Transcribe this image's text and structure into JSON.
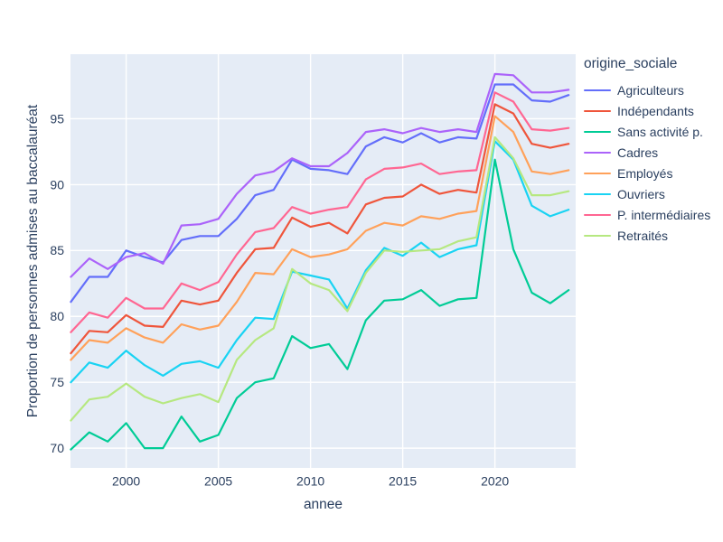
{
  "chart_data": {
    "type": "line",
    "title": "",
    "xlabel": "annee",
    "ylabel": "Proportion de personnes admises au baccalauréat",
    "legend_title": "origine_sociale",
    "legend_position": "right",
    "grid": true,
    "plot_bg": "#E5ECF6",
    "grid_color": "#ffffff",
    "text_color": "#2a3f5f",
    "x_ticks": [
      2000,
      2005,
      2010,
      2015,
      2020
    ],
    "y_ticks": [
      70,
      75,
      80,
      85,
      90,
      95
    ],
    "x_range": [
      1996.98,
      2024.38
    ],
    "y_range": [
      68.5,
      99.9
    ],
    "x": [
      1997,
      1998,
      1999,
      2000,
      2001,
      2002,
      2003,
      2004,
      2005,
      2006,
      2007,
      2008,
      2009,
      2010,
      2011,
      2012,
      2013,
      2014,
      2015,
      2016,
      2017,
      2018,
      2019,
      2020,
      2021,
      2022,
      2023,
      2024
    ],
    "series": [
      {
        "name": "Agriculteurs",
        "color": "#636EFA",
        "values": [
          81.1,
          83.0,
          83.0,
          85.0,
          84.5,
          84.1,
          85.8,
          86.1,
          86.1,
          87.4,
          89.2,
          89.6,
          91.9,
          91.2,
          91.1,
          90.8,
          92.9,
          93.6,
          93.2,
          93.9,
          93.2,
          93.6,
          93.5,
          97.6,
          97.6,
          96.4,
          96.3,
          96.8
        ]
      },
      {
        "name": "Indépendants",
        "color": "#EF553B",
        "values": [
          77.2,
          78.9,
          78.8,
          80.1,
          79.3,
          79.2,
          81.2,
          80.9,
          81.2,
          83.3,
          85.1,
          85.2,
          87.5,
          86.8,
          87.1,
          86.3,
          88.5,
          89.0,
          89.1,
          90.0,
          89.3,
          89.6,
          89.4,
          96.1,
          95.4,
          93.1,
          92.8,
          93.1
        ]
      },
      {
        "name": "Sans activité p.",
        "color": "#00CC96",
        "values": [
          69.9,
          71.2,
          70.5,
          71.9,
          70.0,
          70.0,
          72.4,
          70.5,
          71.0,
          73.8,
          75.0,
          75.3,
          78.5,
          77.6,
          77.9,
          76.0,
          79.7,
          81.2,
          81.3,
          82.0,
          80.8,
          81.3,
          81.4,
          91.9,
          85.1,
          81.8,
          81.0,
          82.0
        ]
      },
      {
        "name": "Cadres",
        "color": "#AB63FA",
        "values": [
          83.0,
          84.4,
          83.6,
          84.5,
          84.8,
          84.0,
          86.9,
          87.0,
          87.4,
          89.3,
          90.7,
          91.0,
          92.0,
          91.4,
          91.4,
          92.4,
          94.0,
          94.2,
          93.9,
          94.3,
          94.0,
          94.2,
          94.0,
          98.4,
          98.3,
          97.0,
          97.0,
          97.2
        ]
      },
      {
        "name": "Employés",
        "color": "#FFA15A",
        "values": [
          76.7,
          78.2,
          78.0,
          79.1,
          78.4,
          78.0,
          79.4,
          79.0,
          79.3,
          81.1,
          83.3,
          83.2,
          85.1,
          84.5,
          84.7,
          85.1,
          86.5,
          87.1,
          86.9,
          87.6,
          87.4,
          87.8,
          88.0,
          95.2,
          94.0,
          91.0,
          90.8,
          91.1
        ]
      },
      {
        "name": "Ouvriers",
        "color": "#19D3F3",
        "values": [
          75.0,
          76.5,
          76.1,
          77.4,
          76.3,
          75.5,
          76.4,
          76.6,
          76.1,
          78.2,
          79.9,
          79.8,
          83.4,
          83.1,
          82.8,
          80.6,
          83.5,
          85.2,
          84.6,
          85.6,
          84.5,
          85.1,
          85.4,
          93.3,
          91.9,
          88.4,
          87.6,
          88.1
        ]
      },
      {
        "name": "P. intermédiaires",
        "color": "#FF6692",
        "values": [
          78.8,
          80.3,
          79.9,
          81.4,
          80.6,
          80.6,
          82.5,
          82.0,
          82.6,
          84.7,
          86.4,
          86.7,
          88.3,
          87.8,
          88.1,
          88.3,
          90.4,
          91.2,
          91.3,
          91.6,
          90.8,
          91.0,
          91.1,
          97.0,
          96.3,
          94.2,
          94.1,
          94.3
        ]
      },
      {
        "name": "Retraités",
        "color": "#B6E880",
        "values": [
          72.1,
          73.7,
          73.9,
          74.9,
          73.9,
          73.4,
          73.8,
          74.1,
          73.5,
          76.7,
          78.2,
          79.1,
          83.6,
          82.5,
          82.0,
          80.4,
          83.3,
          85.0,
          84.9,
          85.0,
          85.1,
          85.7,
          86.0,
          93.6,
          92.0,
          89.2,
          89.2,
          89.5
        ]
      }
    ]
  }
}
